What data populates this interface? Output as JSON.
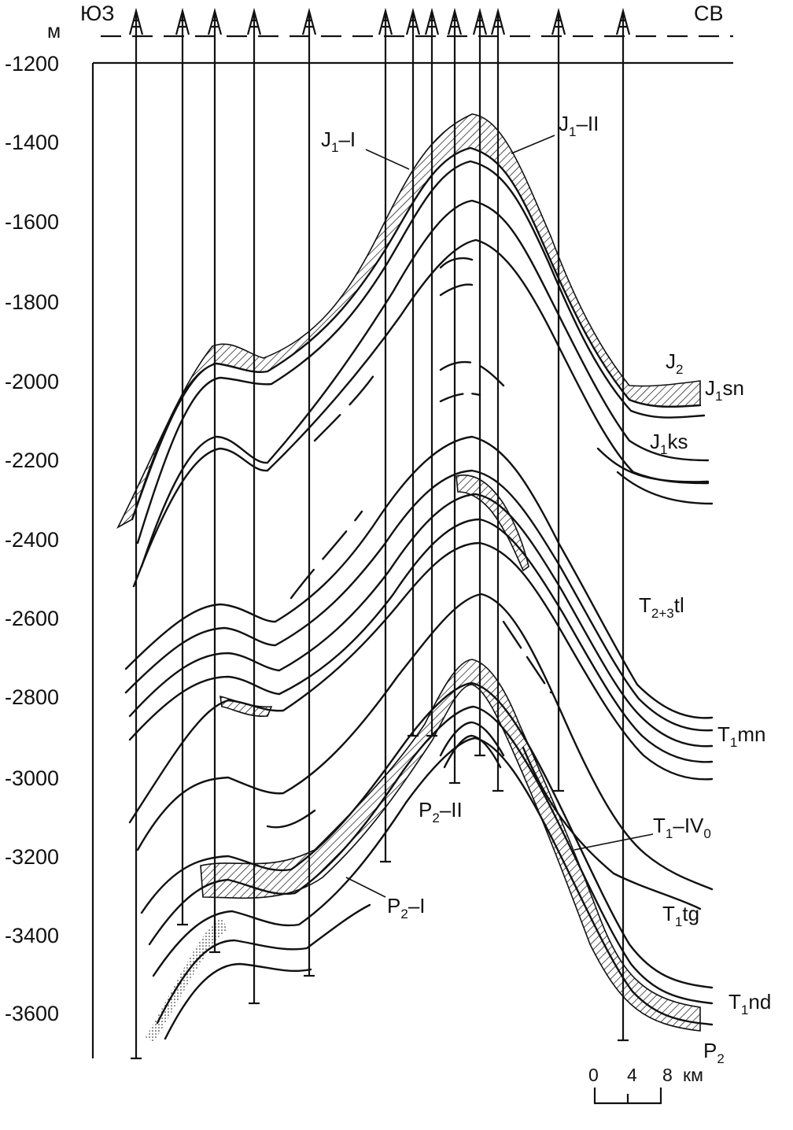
{
  "header": {
    "unit": "м",
    "left_dir": "ЮЗ",
    "right_dir": "СВ"
  },
  "axis": {
    "ticks": [
      "-1200",
      "-1400",
      "-1600",
      "-1800",
      "-2000",
      "-2200",
      "-2400",
      "-2600",
      "-2800",
      "-3000",
      "-3200",
      "-3400",
      "-3600"
    ]
  },
  "formations": {
    "J2": {
      "base": "J",
      "sub": "2",
      "rest": ""
    },
    "J1sn": {
      "base": "J",
      "sub": "1",
      "rest": "sn"
    },
    "J1ks": {
      "base": "J",
      "sub": "1",
      "rest": "ks"
    },
    "T23tl": {
      "base": "T",
      "sub": "2+3",
      "rest": "tl"
    },
    "T1mn": {
      "base": "T",
      "sub": "1",
      "rest": "mn"
    },
    "T1IV0": {
      "base": "T",
      "sub": "1",
      "rest": "–IV",
      "sub2": "0"
    },
    "T1tg": {
      "base": "T",
      "sub": "1",
      "rest": "tg"
    },
    "T1nd": {
      "base": "T",
      "sub": "1",
      "rest": "nd"
    },
    "P2": {
      "base": "P",
      "sub": "2",
      "rest": ""
    },
    "J1I": {
      "base": "J",
      "sub": "1",
      "rest": "–I"
    },
    "J1II": {
      "base": "J",
      "sub": "1",
      "rest": "–II"
    },
    "P2I": {
      "base": "P",
      "sub": "2",
      "rest": "–I"
    },
    "P2II": {
      "base": "P",
      "sub": "2",
      "rest": "–II"
    }
  },
  "scale": {
    "labels": [
      "0",
      "4",
      "8"
    ],
    "unit": "км"
  },
  "colors": {
    "ink": "#111111",
    "background": "#ffffff"
  }
}
